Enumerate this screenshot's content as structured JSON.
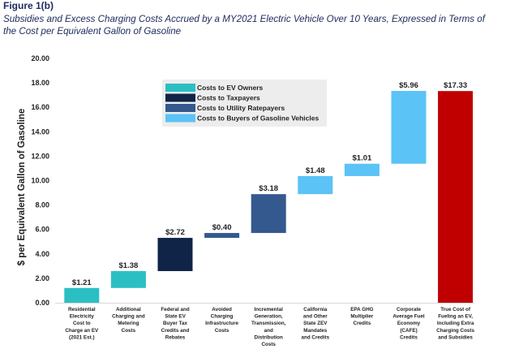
{
  "figure": {
    "label": "Figure 1(b)",
    "caption": "Subsidies and Excess Charging Costs Accrued by a MY2021 Electric Vehicle Over 10 Years, Expressed in Terms of the Cost per Equivalent Gallon of Gasoline"
  },
  "colors": {
    "owners": "#2bbfc4",
    "taxpayers": "#102447",
    "ratepayers": "#34598f",
    "buyers": "#5bc3f5",
    "total": "#c00000"
  },
  "chart_data": {
    "type": "bar",
    "subtype": "waterfall",
    "ylabel": "$ per Equivalent Gallon of Gasoline",
    "ylim": [
      0,
      20
    ],
    "yticks": [
      "0.00",
      "2.00",
      "4.00",
      "6.00",
      "8.00",
      "10.00",
      "12.00",
      "14.00",
      "16.00",
      "18.00",
      "20.00"
    ],
    "grid": false,
    "legend_position": "top-center",
    "legend": [
      {
        "label": "Costs to EV Owners",
        "color_key": "owners"
      },
      {
        "label": "Costs to Taxpayers",
        "color_key": "taxpayers"
      },
      {
        "label": "Costs to Utility Ratepayers",
        "color_key": "ratepayers"
      },
      {
        "label": "Costs to Buyers of Gasoline Vehicles",
        "color_key": "buyers"
      }
    ],
    "bars": [
      {
        "category": [
          "Residential",
          "Electricity",
          "Cost to",
          "Charge an EV",
          "(2021 Est.)"
        ],
        "label": "$1.21",
        "start": 0,
        "value": 1.21,
        "color_key": "owners"
      },
      {
        "category": [
          "Additional",
          "Charging and",
          "Metering",
          "Costs"
        ],
        "label": "$1.38",
        "start": 1.21,
        "value": 1.38,
        "color_key": "owners"
      },
      {
        "category": [
          "Federal and",
          "State EV",
          "Buyer Tax",
          "Credits and",
          "Rebates"
        ],
        "label": "$2.72",
        "start": 2.59,
        "value": 2.72,
        "color_key": "taxpayers"
      },
      {
        "category": [
          "Avoided",
          "Charging",
          "Infrastructure",
          "Costs"
        ],
        "label": "$0.40",
        "start": 5.31,
        "value": 0.4,
        "color_key": "ratepayers"
      },
      {
        "category": [
          "Incremental",
          "Generation,",
          "Transmission,",
          "and",
          "Distribution",
          "Costs"
        ],
        "label": "$3.18",
        "start": 5.71,
        "value": 3.18,
        "color_key": "ratepayers"
      },
      {
        "category": [
          "California",
          "and Other",
          "State ZEV",
          "Mandates",
          "and Credits"
        ],
        "label": "$1.48",
        "start": 8.89,
        "value": 1.48,
        "color_key": "buyers"
      },
      {
        "category": [
          "EPA GHG",
          "Multiplier",
          "Credits"
        ],
        "label": "$1.01",
        "start": 10.37,
        "value": 1.01,
        "color_key": "buyers"
      },
      {
        "category": [
          "Corporate",
          "Average Fuel",
          "Economy",
          "(CAFE)",
          "Credits"
        ],
        "label": "$5.96",
        "start": 11.38,
        "value": 5.96,
        "color_key": "buyers"
      },
      {
        "category": [
          "True Cost of",
          "Fueling an EV,",
          "Including Extra",
          "Charging Costs",
          "and Subsidies"
        ],
        "label": "$17.33",
        "start": 0,
        "value": 17.33,
        "color_key": "total"
      }
    ]
  }
}
